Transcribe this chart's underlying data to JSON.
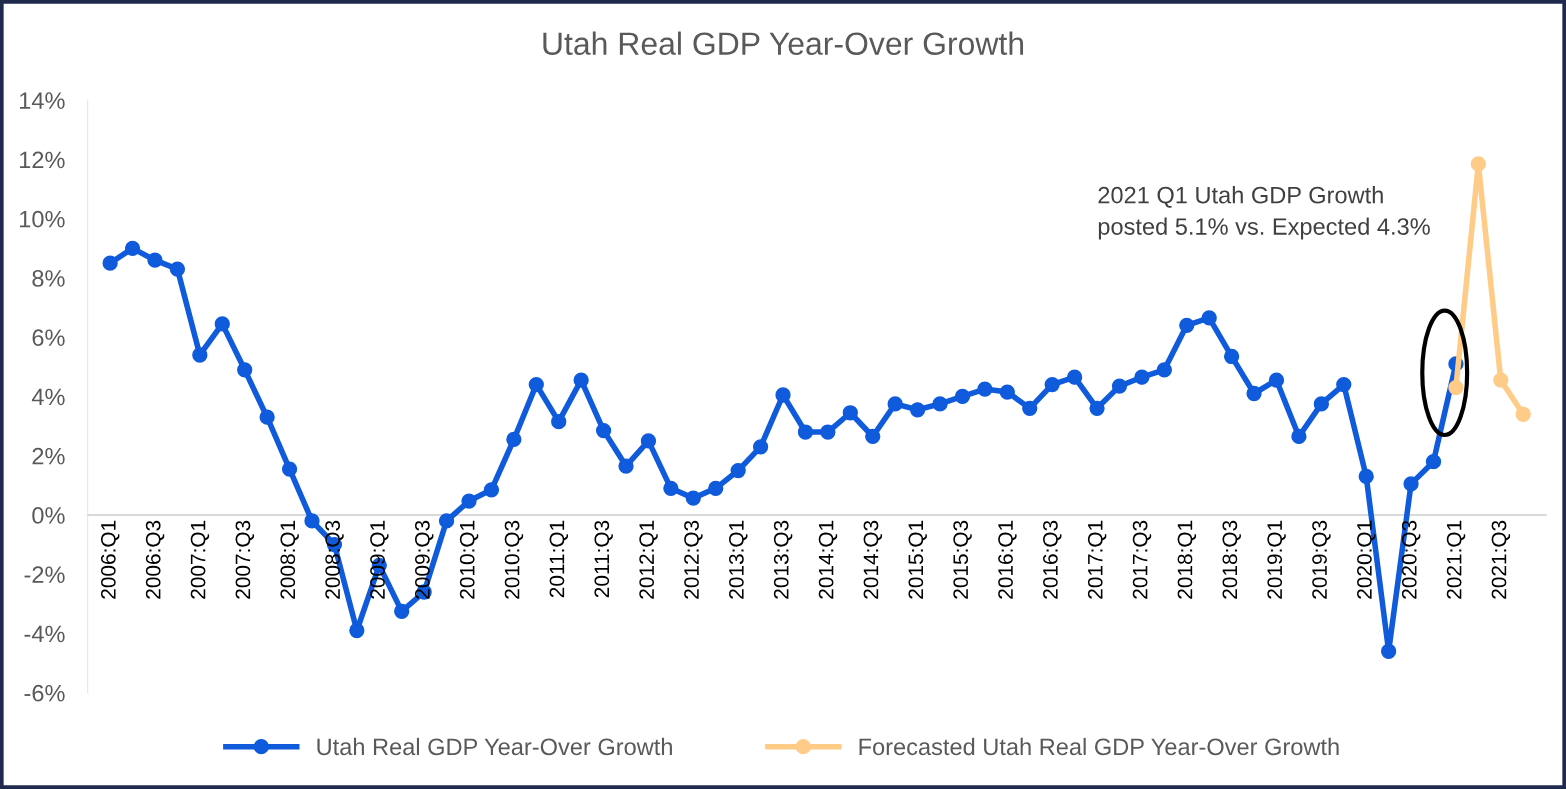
{
  "chart_data": {
    "type": "line",
    "title": "Utah Real GDP Year-Over Growth",
    "categories": [
      "2006:Q1",
      null,
      "2006:Q3",
      null,
      "2007:Q1",
      null,
      "2007:Q3",
      null,
      "2008:Q1",
      null,
      "2008:Q3",
      null,
      "2009:Q1",
      null,
      "2009:Q3",
      null,
      "2010:Q1",
      null,
      "2010:Q3",
      null,
      "2011:Q1",
      null,
      "2011:Q3",
      null,
      "2012:Q1",
      null,
      "2012:Q3",
      null,
      "2013:Q1",
      null,
      "2013:Q3",
      null,
      "2014:Q1",
      null,
      "2014:Q3",
      null,
      "2015:Q1",
      null,
      "2015:Q3",
      null,
      "2016:Q1",
      null,
      "2016:Q3",
      null,
      "2017:Q1",
      null,
      "2017:Q3",
      null,
      "2018:Q1",
      null,
      "2018:Q3",
      null,
      "2019:Q1",
      null,
      "2019:Q3",
      null,
      "2020:Q1",
      null,
      "2020:Q3",
      null,
      "2021:Q1",
      null,
      "2021:Q3",
      null
    ],
    "series": [
      {
        "name": "Utah Real GDP Year-Over Growth",
        "color": "#0f5bdc",
        "values": [
          8.5,
          9.0,
          8.6,
          8.3,
          5.4,
          6.45,
          4.9,
          3.3,
          1.55,
          -0.2,
          -1.0,
          -3.9,
          -1.7,
          -3.25,
          -2.6,
          -0.2,
          0.47,
          0.85,
          2.55,
          4.4,
          3.15,
          4.55,
          2.85,
          1.65,
          2.5,
          0.9,
          0.57,
          0.9,
          1.5,
          2.3,
          4.05,
          2.8,
          2.8,
          3.45,
          2.65,
          3.75,
          3.55,
          3.75,
          4.0,
          4.25,
          4.15,
          3.6,
          4.4,
          4.65,
          3.6,
          4.35,
          4.65,
          4.9,
          6.4,
          6.65,
          5.35,
          4.1,
          4.55,
          2.65,
          3.75,
          4.4,
          1.3,
          -4.6,
          1.05,
          1.8,
          5.1,
          null,
          null,
          null
        ]
      },
      {
        "name": "Forecasted Utah Real GDP Year-Over Growth",
        "color": "#ffcc88",
        "values": [
          null,
          null,
          null,
          null,
          null,
          null,
          null,
          null,
          null,
          null,
          null,
          null,
          null,
          null,
          null,
          null,
          null,
          null,
          null,
          null,
          null,
          null,
          null,
          null,
          null,
          null,
          null,
          null,
          null,
          null,
          null,
          null,
          null,
          null,
          null,
          null,
          null,
          null,
          null,
          null,
          null,
          null,
          null,
          null,
          null,
          null,
          null,
          null,
          null,
          null,
          null,
          null,
          null,
          null,
          null,
          null,
          null,
          null,
          null,
          null,
          4.3,
          11.85,
          4.55,
          3.4
        ]
      }
    ],
    "ylim": [
      -6,
      14
    ],
    "yticks": [
      {
        "value": -6,
        "label": "-6%"
      },
      {
        "value": -4,
        "label": "-4%"
      },
      {
        "value": -2,
        "label": "-2%"
      },
      {
        "value": 0,
        "label": "0%"
      },
      {
        "value": 2,
        "label": "2%"
      },
      {
        "value": 4,
        "label": "4%"
      },
      {
        "value": 6,
        "label": "6%"
      },
      {
        "value": 8,
        "label": "8%"
      },
      {
        "value": 10,
        "label": "10%"
      },
      {
        "value": 12,
        "label": "12%"
      },
      {
        "value": 14,
        "label": "14%"
      }
    ],
    "annotations": [
      "2021 Q1 Utah GDP Growth\nposted 5.1% vs. Expected 4.3%"
    ],
    "grid": false,
    "legend": "bottom",
    "marker": "circle",
    "line_style": "solid"
  }
}
